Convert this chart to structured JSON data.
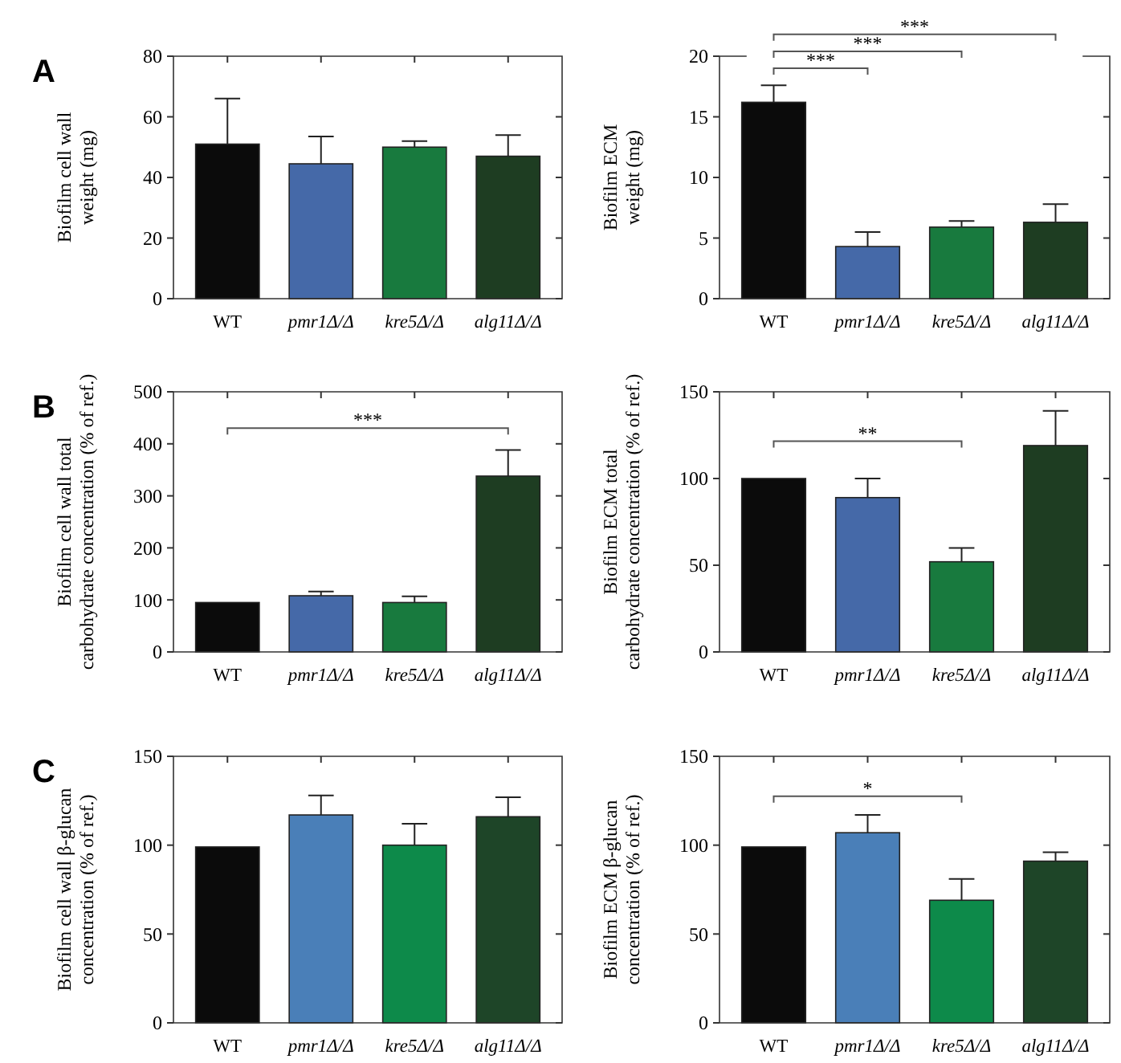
{
  "chart_data": [
    {
      "type": "bar",
      "ylabel": "Biofilm cell wall\nweight (mg)",
      "categories": [
        "WT",
        "pmr1Δ/Δ",
        "kre5Δ/Δ",
        "alg11Δ/Δ"
      ],
      "values": [
        51,
        44.5,
        50,
        47
      ],
      "errors": [
        [
          51,
          66
        ],
        [
          44.5,
          53.5
        ],
        [
          50,
          52
        ],
        [
          47,
          54
        ]
      ],
      "colors": [
        "#0b0b0b",
        "#4569a8",
        "#187a3e",
        "#1e3d22"
      ],
      "ylim": [
        0,
        80
      ],
      "yticks": [
        0,
        20,
        40,
        60,
        80
      ],
      "annotations": [
        "A"
      ]
    },
    {
      "type": "bar",
      "ylabel": "Biofilm ECM\nweight (mg)",
      "categories": [
        "WT",
        "pmr1Δ/Δ",
        "kre5Δ/Δ",
        "alg11Δ/Δ"
      ],
      "values": [
        16.2,
        4.3,
        5.9,
        6.3
      ],
      "errors": [
        [
          16.2,
          17.6
        ],
        [
          4.3,
          5.5
        ],
        [
          5.9,
          6.4
        ],
        [
          6.3,
          7.8
        ]
      ],
      "colors": [
        "#0b0b0b",
        "#4569a8",
        "#187a3e",
        "#1e3d22"
      ],
      "ylim": [
        0,
        20
      ],
      "yticks": [
        0,
        5,
        10,
        15,
        20
      ],
      "annotations": [
        "***",
        "***",
        "***"
      ]
    },
    {
      "type": "bar",
      "ylabel": "Biofilm cell wall total\ncarbohydrate concentration (% of ref.)",
      "categories": [
        "WT",
        "pmr1Δ/Δ",
        "kre5Δ/Δ",
        "alg11Δ/Δ"
      ],
      "values": [
        95,
        108,
        95,
        338
      ],
      "errors": [
        null,
        [
          108,
          116
        ],
        [
          95,
          107
        ],
        [
          338,
          388
        ]
      ],
      "colors": [
        "#0b0b0b",
        "#4569a8",
        "#187a3e",
        "#1e3d22"
      ],
      "ylim": [
        0,
        500
      ],
      "yticks": [
        0,
        100,
        200,
        300,
        400,
        500
      ],
      "annotations": [
        "B",
        "***"
      ]
    },
    {
      "type": "bar",
      "ylabel": "Biofilm ECM total\ncarbohydrate concentration (% of ref.)",
      "categories": [
        "WT",
        "pmr1Δ/Δ",
        "kre5Δ/Δ",
        "alg11Δ/Δ"
      ],
      "values": [
        100,
        89,
        52,
        119
      ],
      "errors": [
        null,
        [
          89,
          100
        ],
        [
          52,
          60
        ],
        [
          119,
          139
        ]
      ],
      "colors": [
        "#0b0b0b",
        "#4569a8",
        "#187a3e",
        "#1e3d22"
      ],
      "ylim": [
        0,
        150
      ],
      "yticks": [
        0,
        50,
        100,
        150
      ],
      "annotations": [
        "**"
      ]
    },
    {
      "type": "bar",
      "ylabel": "Biofilm cell wall β-glucan\nconcentration (% of ref.)",
      "categories": [
        "WT",
        "pmr1Δ/Δ",
        "kre5Δ/Δ",
        "alg11Δ/Δ"
      ],
      "values": [
        99,
        117,
        100,
        116
      ],
      "errors": [
        null,
        [
          117,
          128
        ],
        [
          100,
          112
        ],
        [
          116,
          127
        ]
      ],
      "colors": [
        "#0b0b0b",
        "#4a7fb8",
        "#0d8a4a",
        "#1e4528"
      ],
      "ylim": [
        0,
        150
      ],
      "yticks": [
        0,
        50,
        100,
        150
      ],
      "annotations": [
        "C"
      ]
    },
    {
      "type": "bar",
      "ylabel": "Biofilm ECM β-glucan\nconcentration (% of ref.)",
      "categories": [
        "WT",
        "pmr1Δ/Δ",
        "kre5Δ/Δ",
        "alg11Δ/Δ"
      ],
      "values": [
        99,
        107,
        69,
        91
      ],
      "errors": [
        null,
        [
          107,
          117
        ],
        [
          69,
          81
        ],
        [
          91,
          96
        ]
      ],
      "colors": [
        "#0b0b0b",
        "#4a7fb8",
        "#0d8a4a",
        "#1e4528"
      ],
      "ylim": [
        0,
        150
      ],
      "yticks": [
        0,
        50,
        100,
        150
      ],
      "annotations": [
        "*"
      ]
    }
  ]
}
